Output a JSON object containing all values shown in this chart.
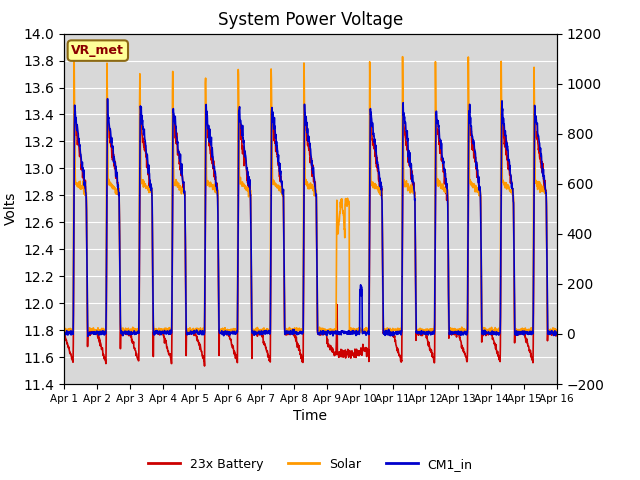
{
  "title": "System Power Voltage",
  "xlabel": "Time",
  "ylabel_left": "Volts",
  "ylim_left": [
    11.4,
    14.0
  ],
  "ylim_right": [
    -200,
    1200
  ],
  "yticks_left": [
    11.4,
    11.6,
    11.8,
    12.0,
    12.2,
    12.4,
    12.6,
    12.8,
    13.0,
    13.2,
    13.4,
    13.6,
    13.8,
    14.0
  ],
  "yticks_right": [
    -200,
    0,
    200,
    400,
    600,
    800,
    1000,
    1200
  ],
  "xticklabels": [
    "Apr 1",
    "Apr 2",
    "Apr 3",
    "Apr 4",
    "Apr 5",
    "Apr 6",
    "Apr 7",
    "Apr 8",
    "Apr 9",
    "Apr 10",
    "Apr 11",
    "Apr 12",
    "Apr 13",
    "Apr 14",
    "Apr 15",
    "Apr 16"
  ],
  "color_battery": "#cc0000",
  "color_solar": "#ff9900",
  "color_cm1": "#0000cc",
  "legend_labels": [
    "23x Battery",
    "Solar",
    "CM1_in"
  ],
  "vr_met_label": "VR_met",
  "bg_color": "#d8d8d8",
  "linewidth": 1.2,
  "title_fontsize": 12
}
